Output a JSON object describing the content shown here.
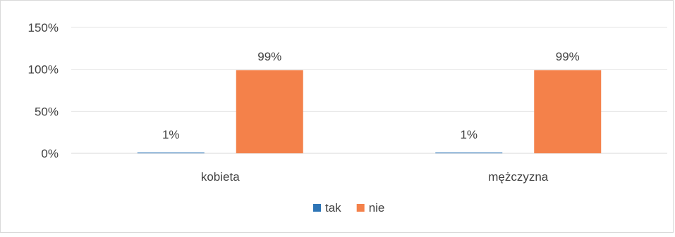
{
  "chart_data": {
    "type": "bar",
    "title": "",
    "xlabel": "",
    "ylabel": "",
    "categories": [
      "kobieta",
      "mężczyzna"
    ],
    "series": [
      {
        "name": "tak",
        "values": [
          1,
          1
        ],
        "data_labels": [
          "1%",
          "1%"
        ],
        "color": "#2e75b6"
      },
      {
        "name": "nie",
        "values": [
          99,
          99
        ],
        "data_labels": [
          "99%",
          "99%"
        ],
        "color": "#f4814a"
      }
    ],
    "ylim": [
      0,
      150
    ],
    "y_ticks": [
      0,
      50,
      100,
      150
    ],
    "y_tick_labels": [
      "0%",
      "50%",
      "100%",
      "150%"
    ],
    "grid": true,
    "legend": {
      "placement": "bottom"
    }
  }
}
